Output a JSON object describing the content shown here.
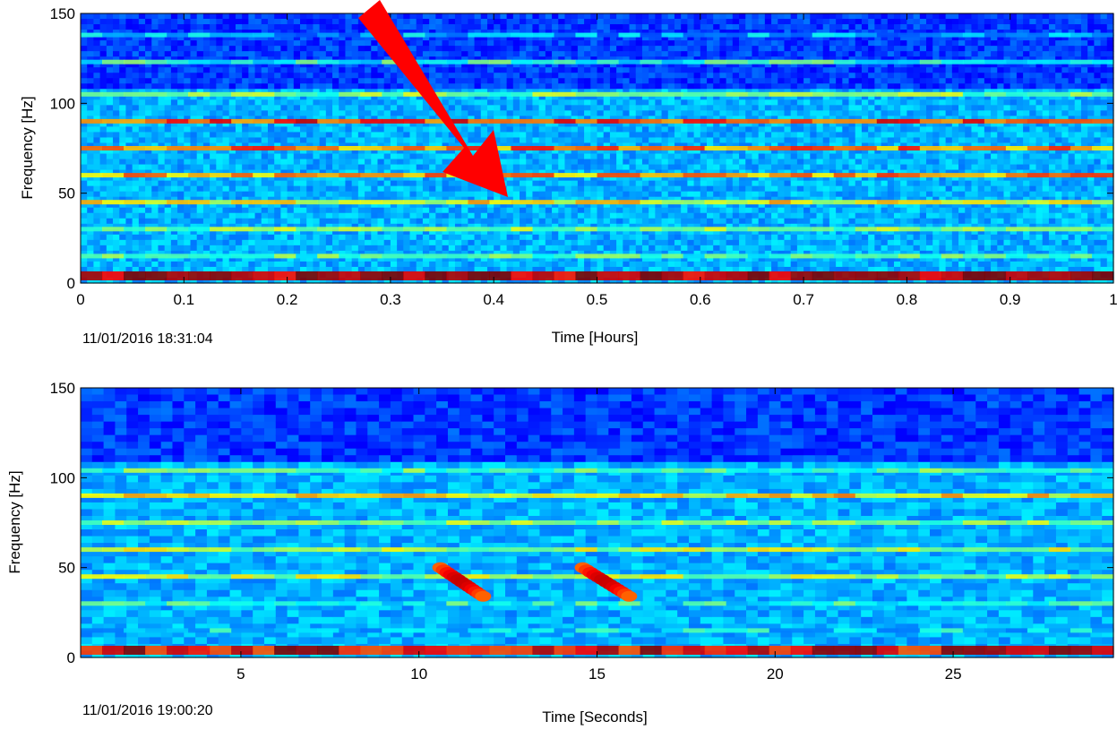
{
  "chart_data": [
    {
      "type": "heatmap",
      "title": "",
      "xlabel": "Time [Hours]",
      "ylabel": "Frequency [Hz]",
      "xlim": [
        0,
        1
      ],
      "ylim": [
        0,
        150
      ],
      "x_ticks": [
        "0",
        "0.1",
        "0.2",
        "0.3",
        "0.4",
        "0.5",
        "0.6",
        "0.7",
        "0.8",
        "0.9",
        "1"
      ],
      "y_ticks": [
        "0",
        "50",
        "100",
        "150"
      ],
      "timestamp": "11/01/2016 18:31:04",
      "colormap": "jet",
      "energy_bands_hz": [
        {
          "freq": 4,
          "intensity": 0.95
        },
        {
          "freq": 15,
          "intensity": 0.45
        },
        {
          "freq": 30,
          "intensity": 0.5
        },
        {
          "freq": 45,
          "intensity": 0.62
        },
        {
          "freq": 60,
          "intensity": 0.72
        },
        {
          "freq": 75,
          "intensity": 0.75
        },
        {
          "freq": 90,
          "intensity": 0.82
        },
        {
          "freq": 105,
          "intensity": 0.5
        },
        {
          "freq": 123,
          "intensity": 0.42
        },
        {
          "freq": 138,
          "intensity": 0.3
        }
      ],
      "annotation": {
        "type": "arrow",
        "color": "#ff0000",
        "target": {
          "x": 0.41,
          "y": 45
        }
      }
    },
    {
      "type": "heatmap",
      "title": "",
      "xlabel": "Time [Seconds]",
      "ylabel": "Frequency [Hz]",
      "xlim": [
        0.5,
        29.5
      ],
      "ylim": [
        0,
        150
      ],
      "x_ticks": [
        "5",
        "10",
        "15",
        "20",
        "25"
      ],
      "y_ticks": [
        "0",
        "50",
        "100",
        "150"
      ],
      "timestamp": "11/01/2016 19:00:20",
      "colormap": "jet",
      "energy_bands_hz": [
        {
          "freq": 4,
          "intensity": 0.9
        },
        {
          "freq": 15,
          "intensity": 0.35
        },
        {
          "freq": 30,
          "intensity": 0.4
        },
        {
          "freq": 45,
          "intensity": 0.55
        },
        {
          "freq": 60,
          "intensity": 0.55
        },
        {
          "freq": 75,
          "intensity": 0.5
        },
        {
          "freq": 90,
          "intensity": 0.65
        },
        {
          "freq": 104,
          "intensity": 0.45
        }
      ],
      "calls": [
        {
          "t_start": 10.6,
          "t_end": 11.8,
          "f_start": 50,
          "f_end": 34
        },
        {
          "t_start": 14.6,
          "t_end": 15.9,
          "f_start": 50,
          "f_end": 34
        }
      ]
    }
  ]
}
